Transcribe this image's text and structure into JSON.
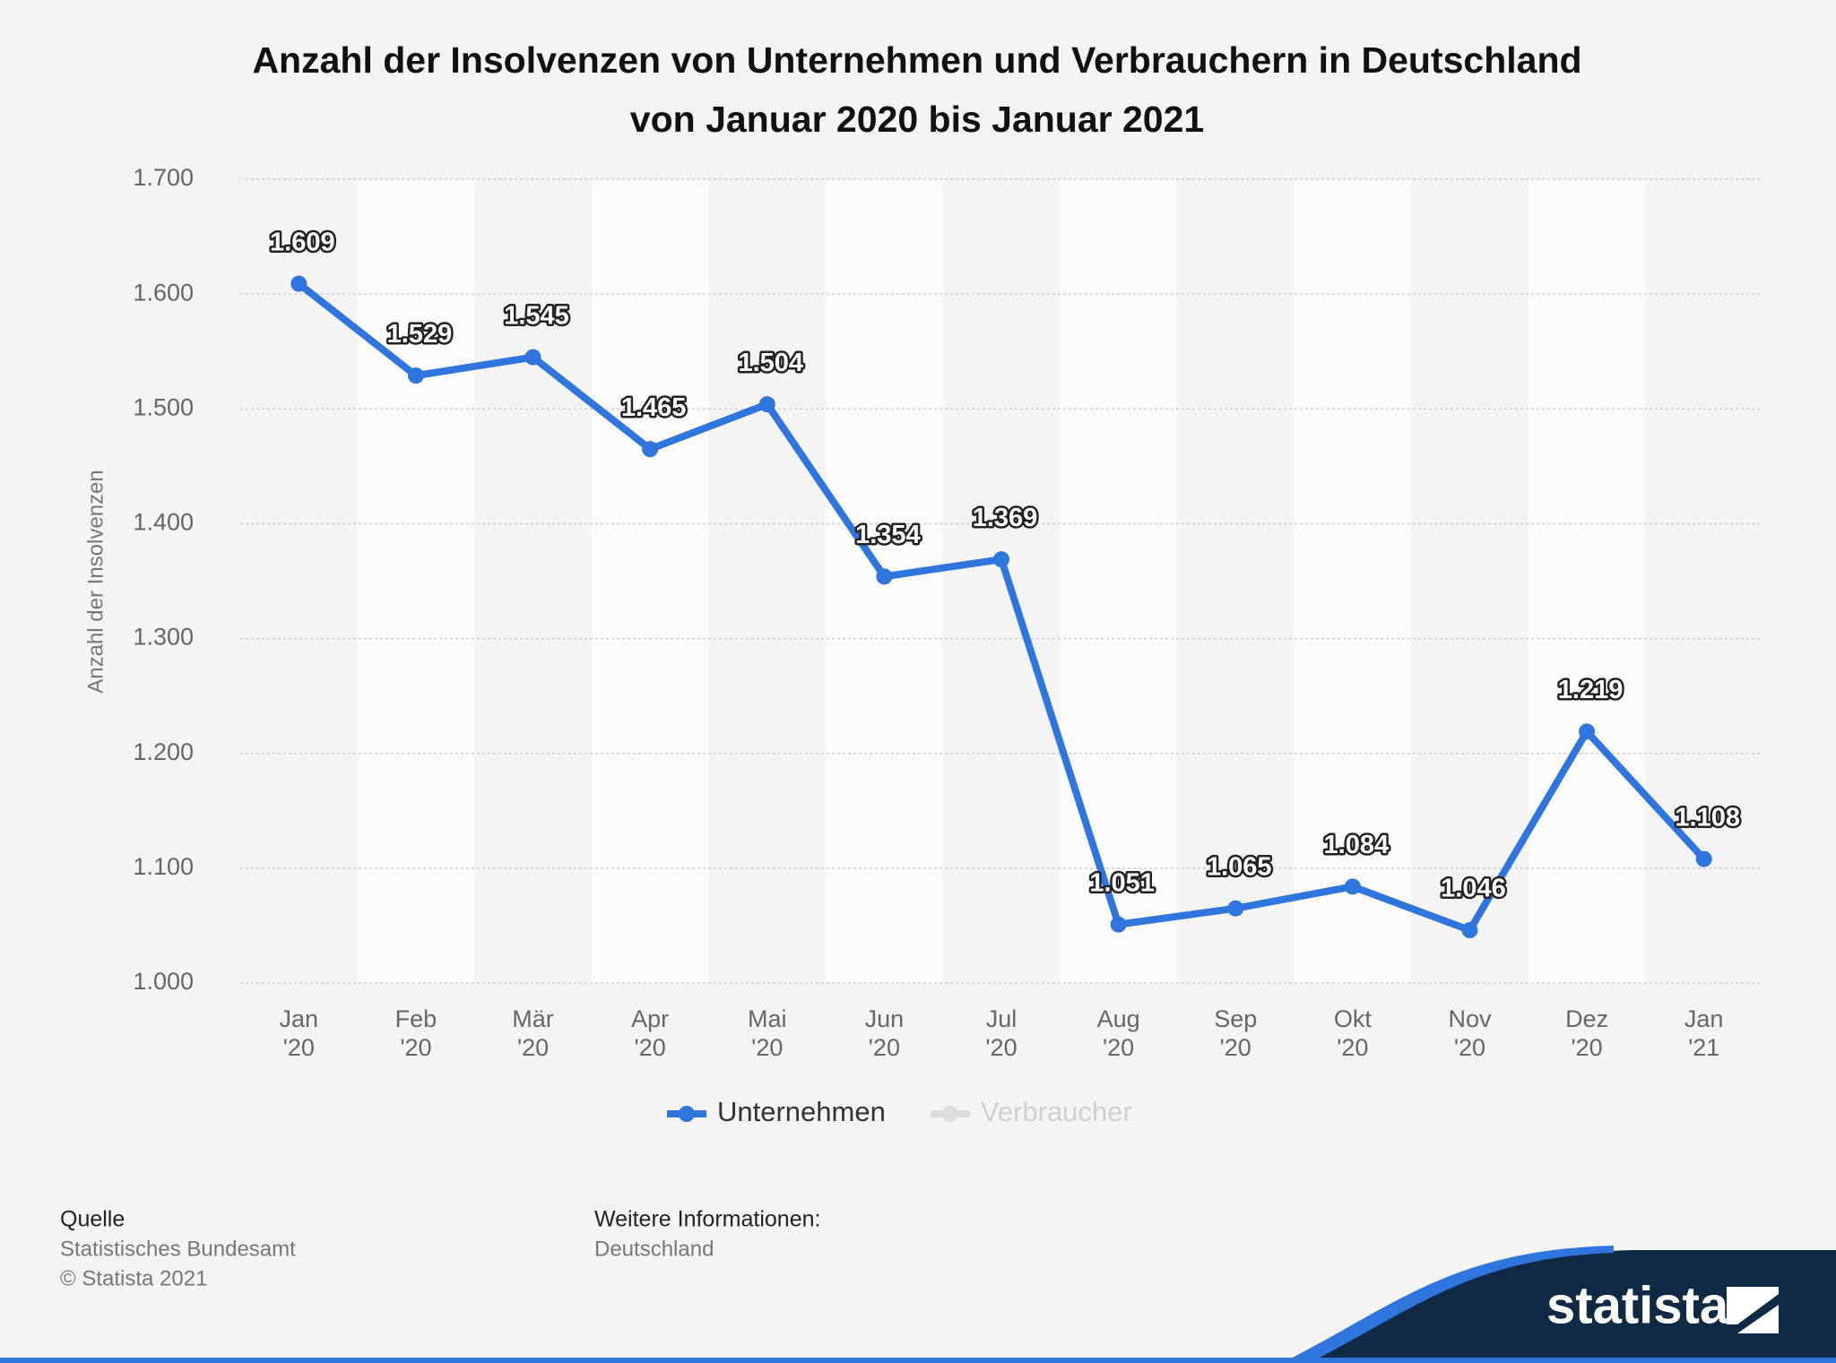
{
  "chart_data": {
    "type": "line",
    "title": "Anzahl der Insolvenzen von Unternehmen und Verbrauchern in Deutschland",
    "subtitle": "von Januar 2020 bis Januar 2021",
    "y_label": "Anzahl der Insolvenzen",
    "categories": [
      "Jan '20",
      "Feb '20",
      "Mär '20",
      "Apr '20",
      "Mai '20",
      "Jun '20",
      "Jul '20",
      "Aug '20",
      "Sep '20",
      "Okt '20",
      "Nov '20",
      "Dez '20",
      "Jan '21"
    ],
    "series": [
      {
        "name": "Unternehmen",
        "color": "#2e75dd",
        "visible": true,
        "values": [
          1609,
          1529,
          1545,
          1465,
          1504,
          1354,
          1369,
          1051,
          1065,
          1084,
          1046,
          1219,
          1108
        ],
        "value_labels": [
          "1.609",
          "1.529",
          "1.545",
          "1.465",
          "1.504",
          "1.354",
          "1.369",
          "1.051",
          "1.065",
          "1.084",
          "1.046",
          "1.219",
          "1.108"
        ]
      },
      {
        "name": "Verbraucher",
        "color": "#cccccc",
        "visible": false,
        "values": [
          null,
          null,
          null,
          null,
          null,
          null,
          null,
          null,
          null,
          null,
          null,
          null,
          null
        ]
      }
    ],
    "ylim": [
      1000,
      1700
    ],
    "yticks": [
      {
        "value": 1000,
        "label": "1.000"
      },
      {
        "value": 1100,
        "label": "1.100"
      },
      {
        "value": 1200,
        "label": "1.200"
      },
      {
        "value": 1300,
        "label": "1.300"
      },
      {
        "value": 1400,
        "label": "1.400"
      },
      {
        "value": 1500,
        "label": "1.500"
      },
      {
        "value": 1600,
        "label": "1.600"
      },
      {
        "value": 1700,
        "label": "1.700"
      }
    ],
    "grid": true
  },
  "source": {
    "heading": "Quelle",
    "name": "Statistisches Bundesamt",
    "copyright": "© Statista 2021"
  },
  "info": {
    "heading": "Weitere Informationen:",
    "region": "Deutschland"
  },
  "logo": "statista"
}
